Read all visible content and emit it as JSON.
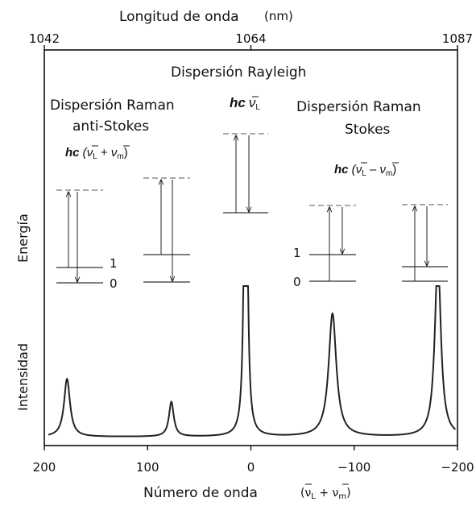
{
  "top_axis": {
    "label": "Longitud de onda",
    "unit": "(nm)",
    "ticks": [
      "1042",
      "1064",
      "1087"
    ]
  },
  "bottom_axis": {
    "label": "Número de onda",
    "formula_open": "(",
    "formula_nu": "ν",
    "formula_L": "L",
    "formula_plus": " + ",
    "formula_m": "m",
    "formula_close": ")"
  },
  "energy_label": "Energía",
  "intensity_label": "Intensidad",
  "rayleigh": {
    "title": "Dispersión Rayleigh",
    "hc": "hc",
    "nu": "ν",
    "sub": "L"
  },
  "anti_stokes": {
    "title_line1": "Dispersión Raman",
    "title_line2": "anti-Stokes",
    "formula": {
      "hc": "hc",
      "open": " (",
      "nu1": "ν",
      "sub1": "L",
      "op": " + ",
      "nu2": "ν",
      "sub2": "m",
      "close": ")"
    }
  },
  "stokes": {
    "title_line1": "Dispersión Raman",
    "title_line2": "Stokes",
    "formula": {
      "hc": "hc",
      "open": " (",
      "nu1": "ν",
      "sub1": "L",
      "op": " – ",
      "nu2": "ν",
      "sub2": "m",
      "close": ")"
    }
  },
  "level_labels": {
    "one": "1",
    "zero": "0"
  },
  "chart_data": {
    "type": "line",
    "xlabel": "Número de onda",
    "ylabel": "Intensidad",
    "xlim": [
      200,
      -200
    ],
    "x_ticks": [
      "200",
      "100",
      "0",
      "−100",
      "−200"
    ],
    "x_tick_values": [
      200,
      100,
      0,
      -100,
      -200
    ],
    "top_ticks": [
      {
        "label": "1042",
        "x": 200
      },
      {
        "label": "1064",
        "x": 0
      },
      {
        "label": "1087",
        "x": -200
      }
    ],
    "baseline": 0.06,
    "peaks": [
      {
        "x": 178,
        "height": 0.4,
        "width": 3.5
      },
      {
        "x": 77,
        "height": 0.24,
        "width": 2.8
      },
      {
        "x": 5,
        "height": 3.6,
        "width": 1.5
      },
      {
        "x": -79,
        "height": 0.85,
        "width": 4.5
      },
      {
        "x": -181,
        "height": 1.25,
        "width": 3.5
      }
    ],
    "ylim": [
      0,
      1.82
    ],
    "grid": false
  }
}
